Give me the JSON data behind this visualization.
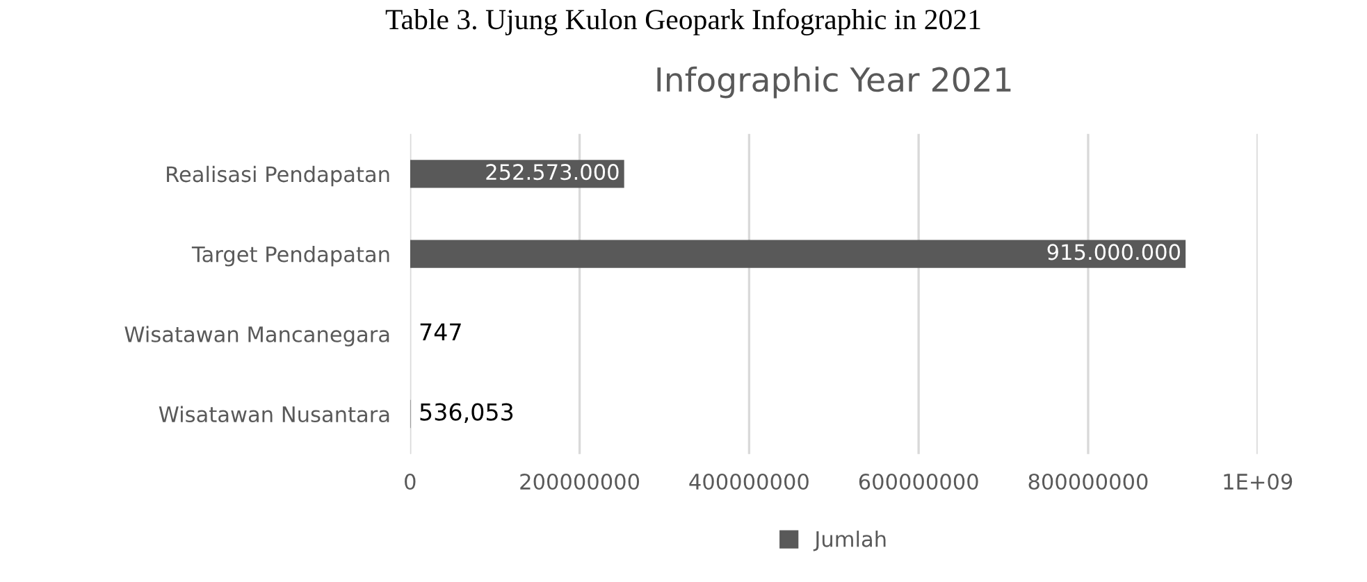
{
  "chart_data": {
    "type": "bar",
    "orientation": "horizontal",
    "title": "Infographic Year 2021",
    "annotations": [
      "Table 3. Ujung Kulon Geopark Infographic in 2021"
    ],
    "categories": [
      "Realisasi Pendapatan",
      "Target Pendapatan",
      "Wisatawan Mancanegara",
      "Wisatawan Nusantara"
    ],
    "series": [
      {
        "name": "Jumlah",
        "color": "#595959",
        "values": [
          252573000,
          915000000,
          747,
          536053
        ],
        "value_labels": [
          "252.573.000",
          "915.000.000",
          "747",
          "536,053"
        ]
      }
    ],
    "xlim": [
      0,
      1000000000
    ],
    "xticks": [
      0,
      200000000,
      400000000,
      600000000,
      800000000,
      {
        "value": 1000000000,
        "label": "1E+09"
      }
    ],
    "grid": "x",
    "legend": "bottom"
  }
}
